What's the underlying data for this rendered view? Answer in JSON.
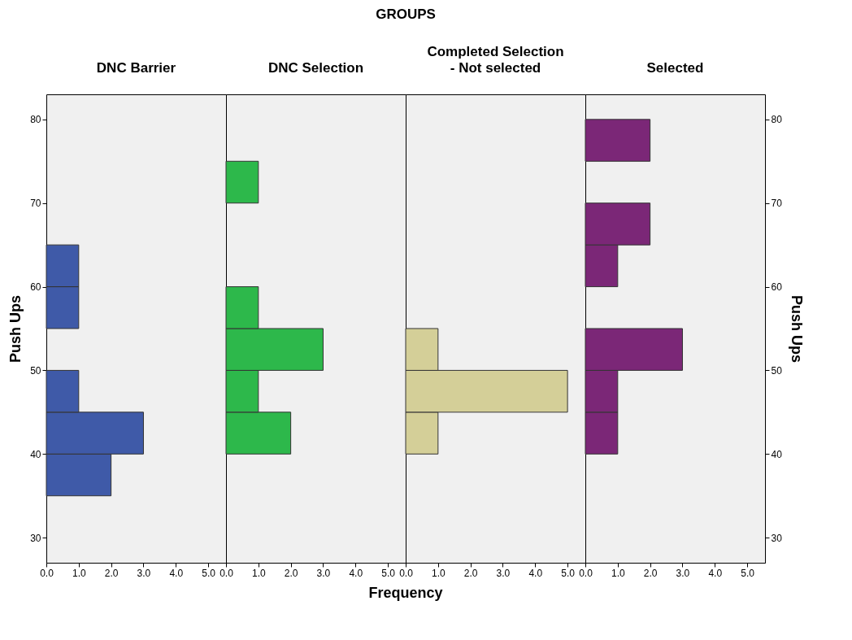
{
  "chart_data": [
    {
      "type": "histogram",
      "orientation": "horizontal",
      "title": "DNC Barrier",
      "annotations": [
        "GROUPS"
      ],
      "ylabel": "Push Ups",
      "color": "#3f5aa8",
      "bins": [
        35,
        40,
        45,
        50,
        55,
        60,
        65
      ],
      "values": [
        2,
        3,
        1,
        0,
        1,
        1
      ],
      "xlim": [
        0,
        5.55
      ],
      "xticks": [
        {
          "value": 0,
          "label": "0.0"
        },
        {
          "value": 1,
          "label": "1.0"
        },
        {
          "value": 2,
          "label": "2.0"
        },
        {
          "value": 3,
          "label": "3.0"
        },
        {
          "value": 4,
          "label": "4.0"
        },
        {
          "value": 5,
          "label": "5.0"
        }
      ],
      "ylim": [
        27,
        83
      ],
      "yticks": [
        30,
        40,
        50,
        60,
        70,
        80
      ]
    },
    {
      "type": "histogram",
      "orientation": "horizontal",
      "title": "DNC Selection",
      "xlabel": "Frequency",
      "color": "#2db84b",
      "bins": [
        40,
        45,
        50,
        55,
        60,
        65,
        70,
        75
      ],
      "values": [
        2,
        1,
        3,
        1,
        0,
        0,
        1
      ],
      "xlim": [
        0,
        5.55
      ],
      "xticks": [
        {
          "value": 0,
          "label": "0.0"
        },
        {
          "value": 1,
          "label": "1.0"
        },
        {
          "value": 2,
          "label": "2.0"
        },
        {
          "value": 3,
          "label": "3.0"
        },
        {
          "value": 4,
          "label": "4.0"
        },
        {
          "value": 5,
          "label": "5.0"
        }
      ],
      "ylim": [
        27,
        83
      ],
      "yticks": [
        30,
        40,
        50,
        60,
        70,
        80
      ],
      "tick_labels": "x"
    },
    {
      "type": "histogram",
      "orientation": "horizontal",
      "title": "Completed Selection - Not selected",
      "color": "#d4cf98",
      "bins": [
        40,
        45,
        50,
        55
      ],
      "values": [
        1,
        5,
        1
      ],
      "xlim": [
        0,
        5.55
      ],
      "xticks": [
        {
          "value": 0,
          "label": "0.0"
        },
        {
          "value": 1,
          "label": "1.0"
        },
        {
          "value": 2,
          "label": "2.0"
        },
        {
          "value": 3,
          "label": "3.0"
        },
        {
          "value": 4,
          "label": "4.0"
        },
        {
          "value": 5,
          "label": "5.0"
        }
      ],
      "ylim": [
        27,
        83
      ],
      "yticks": [
        30,
        40,
        50,
        60,
        70,
        80
      ],
      "tick_labels": "x"
    },
    {
      "type": "histogram",
      "orientation": "horizontal",
      "title": "Selected",
      "ylabel": "Push Ups",
      "color": "#7b2777",
      "bins": [
        40,
        45,
        50,
        55,
        60,
        65,
        70,
        75,
        80
      ],
      "values": [
        1,
        1,
        3,
        0,
        1,
        2,
        0,
        2
      ],
      "xlim": [
        0,
        5.55
      ],
      "xticks": [
        {
          "value": 0,
          "label": "0.0"
        },
        {
          "value": 1,
          "label": "1.0"
        },
        {
          "value": 2,
          "label": "2.0"
        },
        {
          "value": 3,
          "label": "3.0"
        },
        {
          "value": 4,
          "label": "4.0"
        },
        {
          "value": 5,
          "label": "5.0"
        }
      ],
      "ylim": [
        27,
        83
      ],
      "yticks": [
        30,
        40,
        50,
        60,
        70,
        80
      ]
    }
  ]
}
